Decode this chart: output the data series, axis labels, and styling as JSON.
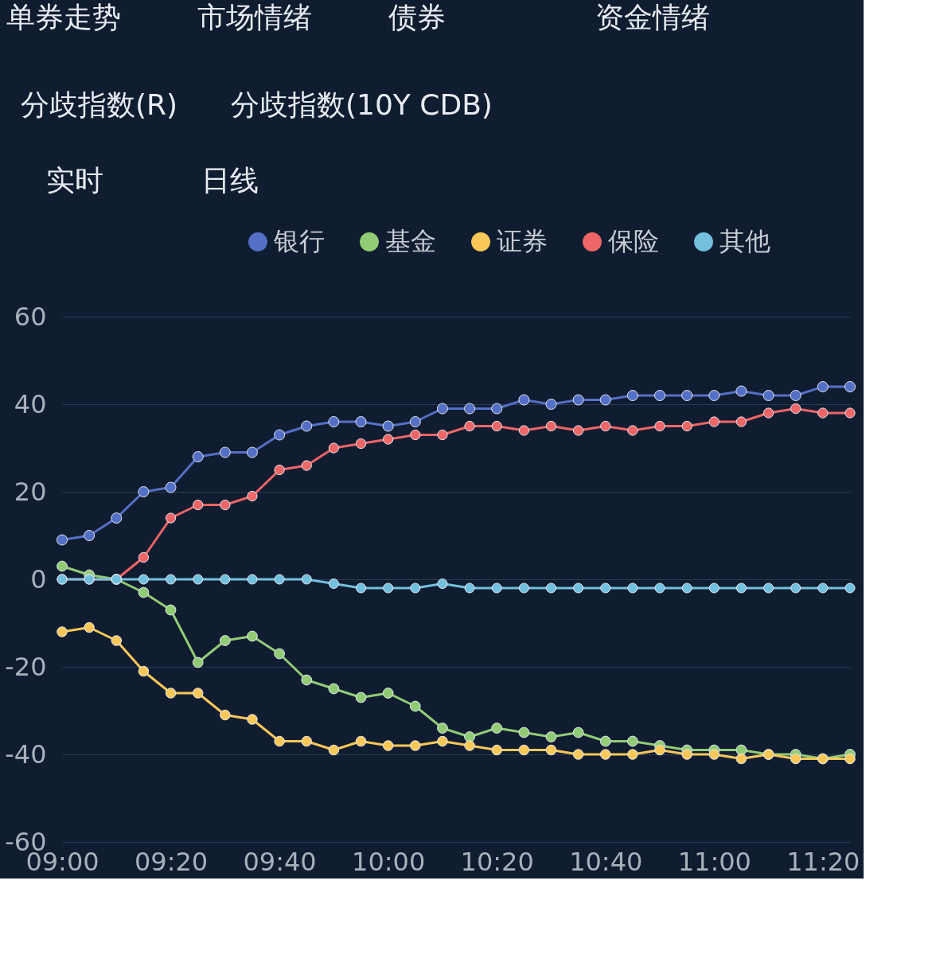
{
  "chart_data": {
    "type": "line",
    "annotations": [
      "单券走势",
      "市场情绪",
      "债券",
      "资金情绪",
      "分歧指数(R)",
      "分歧指数(10Y CDB)",
      "实时",
      "日线"
    ],
    "x": [
      9.0,
      9.0833,
      9.1667,
      9.25,
      9.3333,
      9.4167,
      9.5,
      9.5833,
      9.6667,
      9.75,
      9.8333,
      9.9167,
      10.0,
      10.0833,
      10.1667,
      10.25,
      10.3333,
      10.4167,
      10.5,
      10.5833,
      10.6667,
      10.75,
      10.8333,
      10.9167,
      11.0,
      11.0833,
      11.1667,
      11.25,
      11.3333,
      11.4167
    ],
    "xlim": [
      9.0,
      11.4167
    ],
    "xticks": [
      {
        "value": 9.0,
        "label": "09:00"
      },
      {
        "value": 9.3333,
        "label": "09:20"
      },
      {
        "value": 9.6667,
        "label": "09:40"
      },
      {
        "value": 10.0,
        "label": "10:00"
      },
      {
        "value": 10.3333,
        "label": "10:20"
      },
      {
        "value": 10.6667,
        "label": "10:40"
      },
      {
        "value": 11.0,
        "label": "11:00"
      },
      {
        "value": 11.3333,
        "label": "11:20"
      }
    ],
    "ylim": [
      -60,
      60
    ],
    "yticks": [
      -60,
      -40,
      -20,
      0,
      20,
      40,
      60
    ],
    "grid": "y",
    "legend": "top",
    "marker": "circle",
    "line_style": "solid",
    "series": [
      {
        "name": "银行",
        "color": "#5470c6",
        "values": [
          9,
          10,
          14,
          20,
          21,
          28,
          29,
          29,
          33,
          35,
          36,
          36,
          35,
          36,
          39,
          39,
          39,
          41,
          40,
          41,
          41,
          42,
          42,
          42,
          42,
          43,
          42,
          42,
          44,
          44
        ]
      },
      {
        "name": "基金",
        "color": "#91cc75",
        "values": [
          3,
          1,
          0,
          -3,
          -7,
          -19,
          -14,
          -13,
          -17,
          -23,
          -25,
          -27,
          -26,
          -29,
          -34,
          -36,
          -34,
          -35,
          -36,
          -35,
          -37,
          -37,
          -38,
          -39,
          -39,
          -39,
          -40,
          -40,
          -41,
          -40
        ]
      },
      {
        "name": "证券",
        "color": "#fac858",
        "values": [
          -12,
          -11,
          -14,
          -21,
          -26,
          -26,
          -31,
          -32,
          -37,
          -37,
          -39,
          -37,
          -38,
          -38,
          -37,
          -38,
          -39,
          -39,
          -39,
          -40,
          -40,
          -40,
          -39,
          -40,
          -40,
          -41,
          -40,
          -41,
          -41,
          -41
        ]
      },
      {
        "name": "保险",
        "color": "#ee6666",
        "values": [
          0,
          0,
          0,
          5,
          14,
          17,
          17,
          19,
          25,
          26,
          30,
          31,
          32,
          33,
          33,
          35,
          35,
          34,
          35,
          34,
          35,
          34,
          35,
          35,
          36,
          36,
          38,
          39,
          38,
          38
        ]
      },
      {
        "name": "其他",
        "color": "#73c0de",
        "values": [
          0,
          0,
          0,
          0,
          0,
          0,
          0,
          0,
          0,
          0,
          -1,
          -2,
          -2,
          -2,
          -1,
          -2,
          -2,
          -2,
          -2,
          -2,
          -2,
          -2,
          -2,
          -2,
          -2,
          -2,
          -2,
          -2,
          -2,
          -2
        ]
      }
    ]
  }
}
